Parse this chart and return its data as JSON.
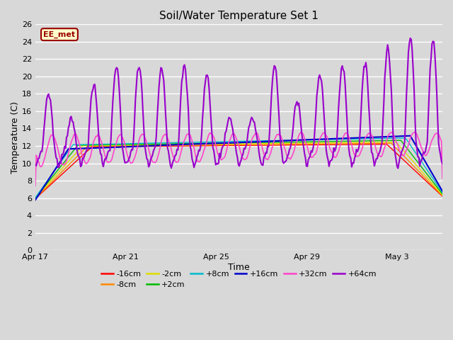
{
  "title": "Soil/Water Temperature Set 1",
  "xlabel": "Time",
  "ylabel": "Temperature (C)",
  "ylim": [
    0,
    26
  ],
  "yticks": [
    0,
    2,
    4,
    6,
    8,
    10,
    12,
    14,
    16,
    18,
    20,
    22,
    24,
    26
  ],
  "xlim_days": [
    0,
    18
  ],
  "xtick_labels": [
    "Apr 17",
    "Apr 21",
    "Apr 25",
    "Apr 29",
    "May 3"
  ],
  "xtick_positions": [
    0,
    4,
    8,
    12,
    16
  ],
  "background_color": "#d8d8d8",
  "plot_bg_color": "#d8d8d8",
  "grid_color": "#ffffff",
  "annotation_text": "EE_met",
  "annotation_bg": "#ffffcc",
  "annotation_border": "#990000",
  "annotation_text_color": "#990000",
  "series": {
    "-16cm": {
      "color": "#ff0000",
      "lw": 1.0
    },
    "-8cm": {
      "color": "#ff8800",
      "lw": 1.0
    },
    "-2cm": {
      "color": "#dddd00",
      "lw": 1.0
    },
    "+2cm": {
      "color": "#00bb00",
      "lw": 1.0
    },
    "+8cm": {
      "color": "#00bbcc",
      "lw": 1.0
    },
    "+16cm": {
      "color": "#0000cc",
      "lw": 1.5
    },
    "+32cm": {
      "color": "#ff44cc",
      "lw": 1.2
    },
    "+64cm": {
      "color": "#9900cc",
      "lw": 1.5
    }
  },
  "legend_order": [
    "-16cm",
    "-8cm",
    "-2cm",
    "+2cm",
    "+8cm",
    "+16cm",
    "+32cm",
    "+64cm"
  ]
}
